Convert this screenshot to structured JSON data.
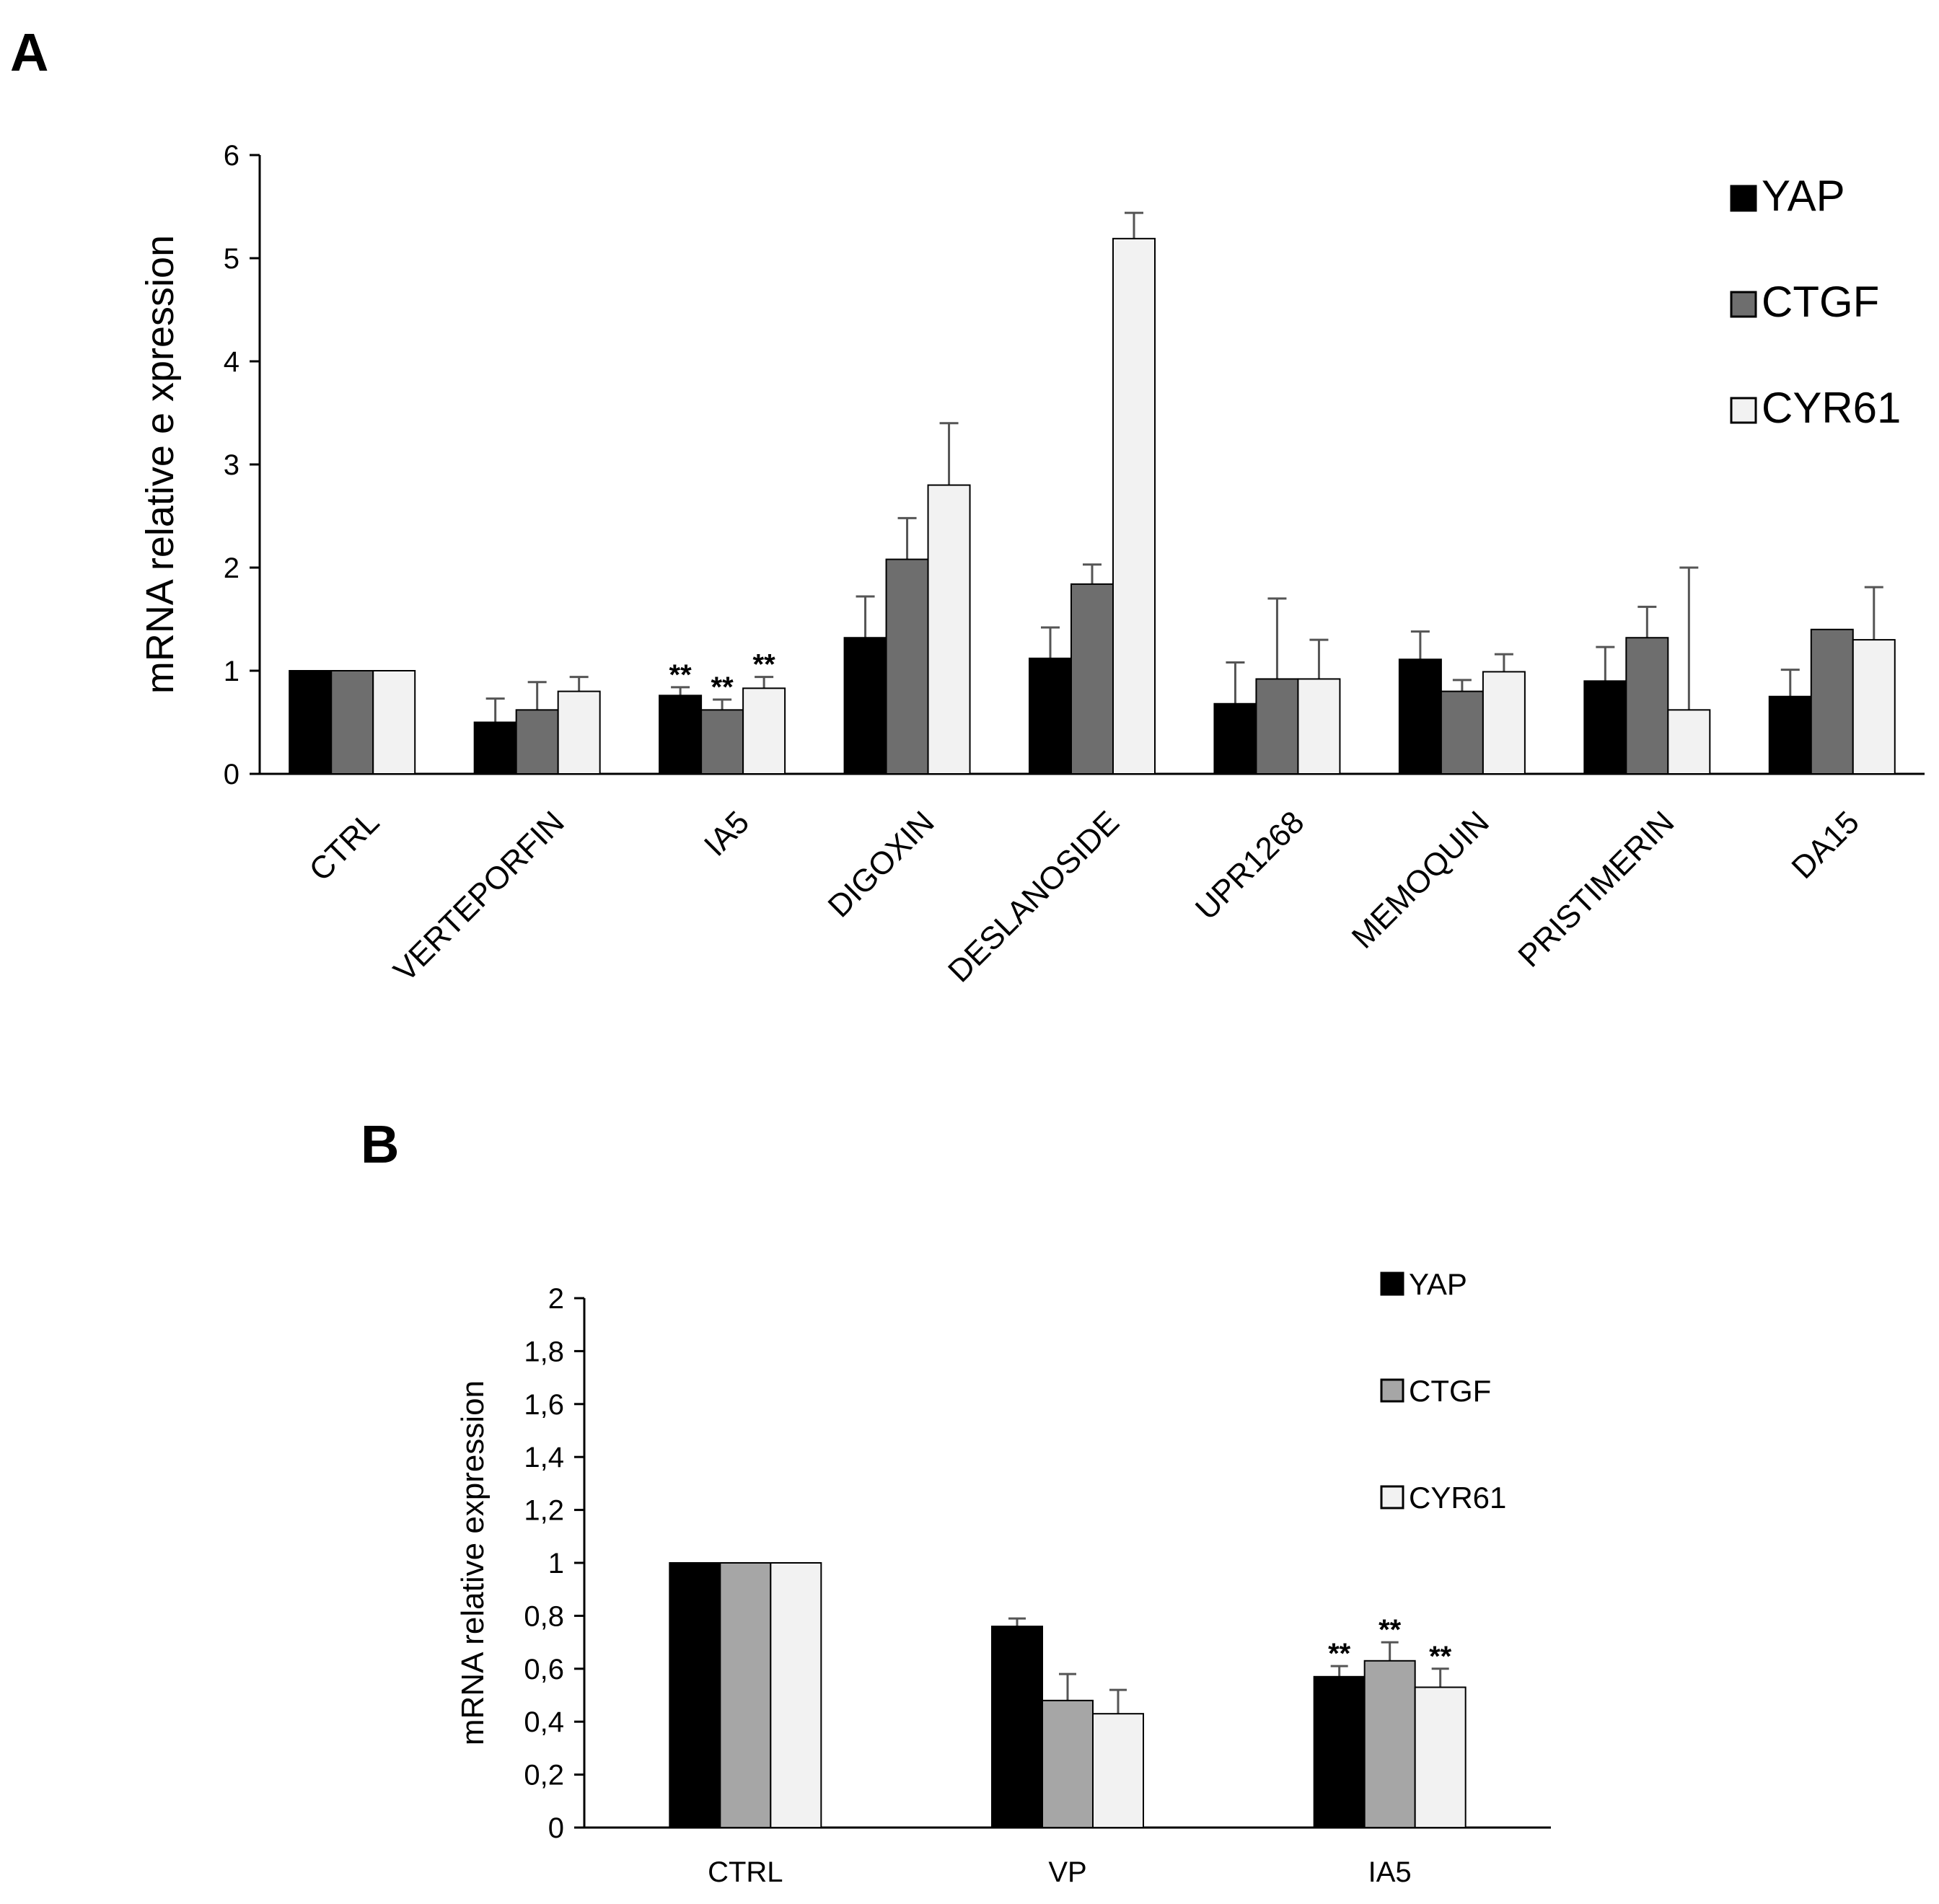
{
  "chart_data": [
    {
      "panel": "A",
      "type": "bar",
      "ylabel": "mRNA relative e xpression",
      "ylim": [
        0,
        6
      ],
      "yticks": [
        "0",
        "1",
        "2",
        "3",
        "4",
        "5",
        "6"
      ],
      "categories": [
        "CTRL",
        "VERTEPORFIN",
        "IA5",
        "DIGOXIN",
        "DESLANOSIDE",
        "UPR1268",
        "MEMOQUIN",
        "PRISTIMERIN",
        "DA15"
      ],
      "series": [
        {
          "name": "YAP",
          "color": "#000000",
          "values": [
            1.0,
            0.5,
            0.76,
            1.32,
            1.12,
            0.68,
            1.11,
            0.9,
            0.75
          ],
          "errors": [
            0.0,
            0.23,
            0.08,
            0.4,
            0.3,
            0.4,
            0.27,
            0.33,
            0.26
          ]
        },
        {
          "name": "CTGF",
          "color": "#6e6e6e",
          "values": [
            1.0,
            0.62,
            0.62,
            2.08,
            1.84,
            0.92,
            0.8,
            1.32,
            1.4
          ],
          "errors": [
            0.0,
            0.27,
            0.1,
            0.4,
            0.19,
            0.78,
            0.11,
            0.3,
            0.0
          ]
        },
        {
          "name": "CYR61",
          "color": "#f2f2f2",
          "values": [
            1.0,
            0.8,
            0.83,
            2.8,
            5.19,
            0.92,
            0.99,
            0.62,
            1.3
          ],
          "errors": [
            0.0,
            0.14,
            0.11,
            0.6,
            0.25,
            0.38,
            0.17,
            1.38,
            0.51
          ]
        }
      ],
      "annotations": [
        {
          "category": "IA5",
          "series": "YAP",
          "text": "**"
        },
        {
          "category": "IA5",
          "series": "CTGF",
          "text": "**"
        },
        {
          "category": "IA5",
          "series": "CYR61",
          "text": "**"
        }
      ],
      "legend": "top-right"
    },
    {
      "panel": "B",
      "type": "bar",
      "ylabel": "mRNA relative expression",
      "ylim": [
        0,
        2
      ],
      "yticks": [
        "0",
        "0,2",
        "0,4",
        "0,6",
        "0,8",
        "1",
        "1,2",
        "1,4",
        "1,6",
        "1,8",
        "2"
      ],
      "categories": [
        "CTRL",
        "VP",
        "IA5"
      ],
      "series": [
        {
          "name": "YAP",
          "color": "#000000",
          "values": [
            1.0,
            0.76,
            0.57
          ],
          "errors": [
            0.0,
            0.03,
            0.04
          ]
        },
        {
          "name": "CTGF",
          "color": "#a6a6a6",
          "values": [
            1.0,
            0.48,
            0.63
          ],
          "errors": [
            0.0,
            0.1,
            0.07
          ]
        },
        {
          "name": "CYR61",
          "color": "#f2f2f2",
          "values": [
            1.0,
            0.43,
            0.53
          ],
          "errors": [
            0.0,
            0.09,
            0.07
          ]
        }
      ],
      "annotations": [
        {
          "category": "IA5",
          "series": "YAP",
          "text": "**"
        },
        {
          "category": "IA5",
          "series": "CTGF",
          "text": "**"
        },
        {
          "category": "IA5",
          "series": "CYR61",
          "text": "**"
        }
      ],
      "legend": "top-right"
    }
  ]
}
